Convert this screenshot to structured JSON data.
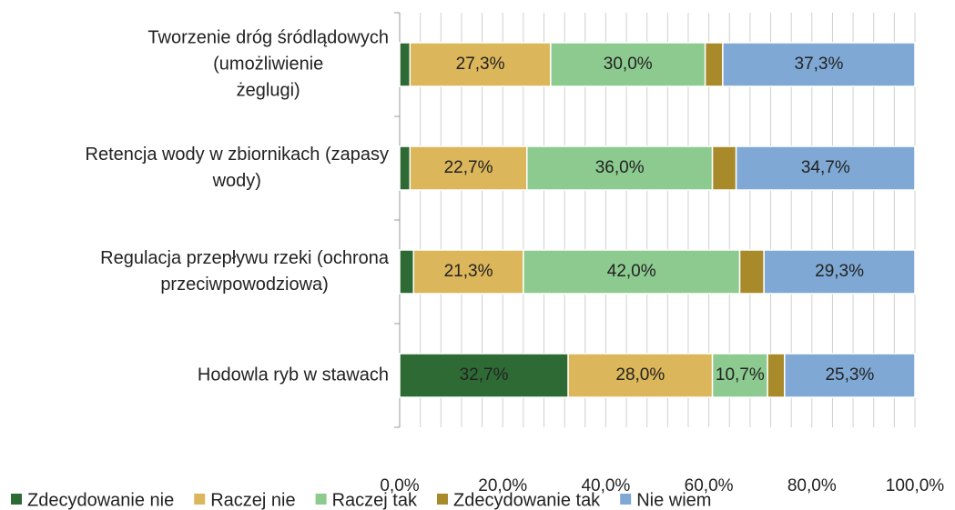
{
  "chart_data": {
    "type": "stacked_bar_horizontal",
    "categories": [
      "Tworzenie dróg śródlądowych\n(umożliwienie\nżeglugi)",
      "Retencja wody w zbiornikach (zapasy\nwody)",
      "Regulacja przepływu rzeki (ochrona\nprzeciwpowodziowa)",
      "Hodowla ryb w stawach"
    ],
    "series": [
      {
        "name": "Zdecydowanie nie",
        "color": "#2e6b34",
        "values": [
          2.0,
          2.0,
          2.7,
          32.7
        ],
        "value_labels": [
          null,
          null,
          null,
          "32,7%"
        ]
      },
      {
        "name": "Raczej nie",
        "color": "#dbb65a",
        "values": [
          27.3,
          22.7,
          21.3,
          28.0
        ],
        "value_labels": [
          "27,3%",
          "22,7%",
          "21,3%",
          "28,0%"
        ]
      },
      {
        "name": "Raczej tak",
        "color": "#8cca8f",
        "values": [
          30.0,
          36.0,
          42.0,
          10.7
        ],
        "value_labels": [
          "30,0%",
          "36,0%",
          "42,0%",
          "10,7%"
        ]
      },
      {
        "name": "Zdecydowanie tak",
        "color": "#a88a2a",
        "values": [
          3.4,
          4.6,
          4.7,
          3.3
        ]
      },
      {
        "name": "Nie wiem",
        "color": "#7fa9d4",
        "values": [
          37.3,
          34.7,
          29.3,
          25.3
        ],
        "value_labels": [
          "37,3%",
          "34,7%",
          "29,3%",
          "25,3%"
        ]
      }
    ],
    "xlim": [
      0,
      100
    ],
    "xticks": [
      {
        "value": 0,
        "label": "0,0%"
      },
      {
        "value": 20,
        "label": "20,0%"
      },
      {
        "value": 40,
        "label": "40,0%"
      },
      {
        "value": 60,
        "label": "60,0%"
      },
      {
        "value": 80,
        "label": "80,0%"
      },
      {
        "value": 100,
        "label": "100,0%"
      }
    ],
    "x_minor_ticks": [
      4,
      8,
      12,
      16,
      24,
      28,
      32,
      36,
      44,
      48,
      52,
      56,
      64,
      68,
      72,
      76,
      84,
      88,
      92,
      96
    ],
    "grid": true,
    "legend": "bottom"
  }
}
